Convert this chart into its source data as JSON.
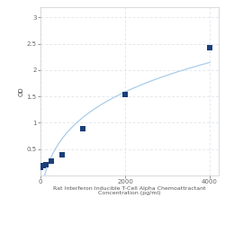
{
  "x_data": [
    0,
    62.5,
    125,
    250,
    500,
    1000,
    2000,
    4000
  ],
  "y_data": [
    0.15,
    0.18,
    0.21,
    0.27,
    0.4,
    0.88,
    1.53,
    2.42
  ],
  "line_color": "#aacce8",
  "marker_color": "#1a3f7a",
  "marker_size": 5,
  "xlabel_line1": "Rat Interferon Inducible T-Cell Alpha Chemoattractant",
  "xlabel_line2": "Concentration (pg/ml)",
  "ylabel": "OD",
  "xlim": [
    0,
    4200
  ],
  "ylim": [
    0.0,
    3.2
  ],
  "yticks": [
    0.5,
    1.0,
    1.5,
    2.0,
    2.5,
    3.0
  ],
  "ytick_labels": [
    "0.5",
    "1",
    "1.5",
    "2",
    "2.5",
    "3"
  ],
  "xtick_positions": [
    0,
    2000,
    4000
  ],
  "xtick_labels": [
    "0",
    "2000",
    "4000"
  ],
  "grid_color": "#d8dfe8",
  "background_color": "#ffffff",
  "xlabel_fontsize": 4.5,
  "axis_label_fontsize": 5,
  "tick_fontsize": 5
}
